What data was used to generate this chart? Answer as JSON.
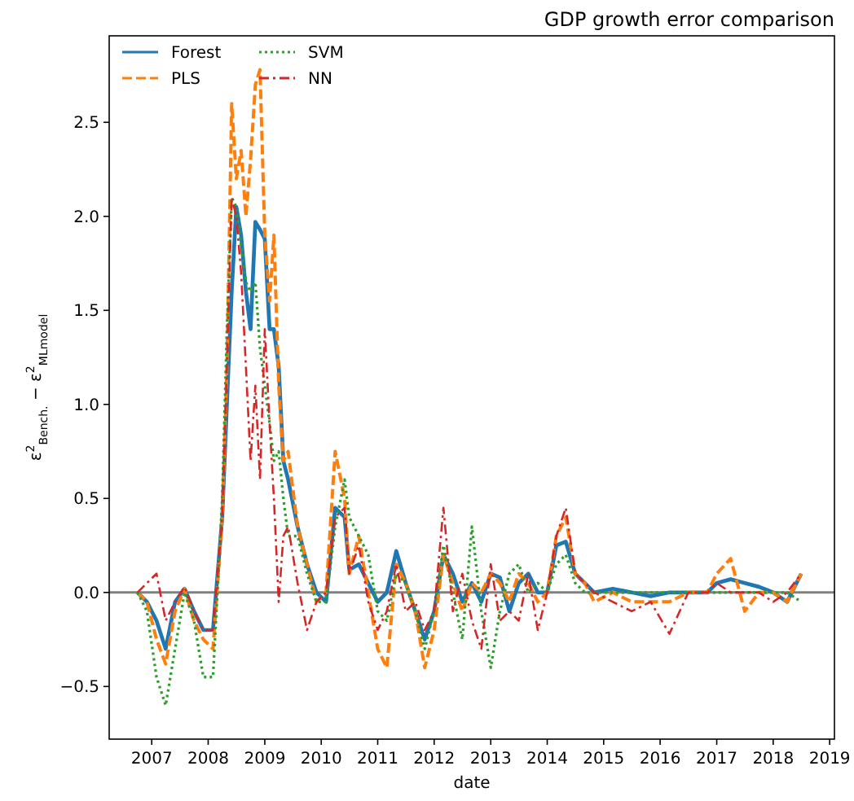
{
  "chart_data": {
    "type": "line",
    "title": "GDP growth error comparison",
    "xlabel": "date",
    "ylabel": "ε$^{2}$$_{Bench.}$ − ε$^{2}$$_{MLmodel}$",
    "x": [
      "2006-10",
      "2006-12",
      "2007-02",
      "2007-04",
      "2007-06",
      "2007-08",
      "2007-10",
      "2007-12",
      "2008-02",
      "2008-04",
      "2008-05",
      "2008-06",
      "2008-07",
      "2008-08",
      "2008-09",
      "2008-10",
      "2008-11",
      "2008-12",
      "2009-01",
      "2009-02",
      "2009-03",
      "2009-04",
      "2009-05",
      "2009-06",
      "2009-08",
      "2009-10",
      "2009-12",
      "2010-02",
      "2010-04",
      "2010-06",
      "2010-07",
      "2010-09",
      "2010-11",
      "2011-01",
      "2011-03",
      "2011-05",
      "2011-07",
      "2011-09",
      "2011-11",
      "2012-01",
      "2012-03",
      "2012-05",
      "2012-07",
      "2012-09",
      "2012-11",
      "2013-01",
      "2013-03",
      "2013-05",
      "2013-07",
      "2013-09",
      "2013-11",
      "2014-01",
      "2014-03",
      "2014-05",
      "2014-07",
      "2014-09",
      "2014-11",
      "2015-03",
      "2015-07",
      "2015-11",
      "2016-03",
      "2016-07",
      "2016-11",
      "2017-01",
      "2017-04",
      "2017-07",
      "2017-10",
      "2018-01",
      "2018-04",
      "2018-07"
    ],
    "series": [
      {
        "name": "Forest",
        "color": "#1f77b4",
        "line_style": "solid",
        "values": [
          0,
          -0.05,
          -0.15,
          -0.3,
          -0.05,
          0.02,
          -0.1,
          -0.2,
          -0.2,
          0.4,
          1.0,
          1.6,
          2.05,
          1.9,
          1.6,
          1.4,
          1.97,
          1.93,
          1.88,
          1.4,
          1.4,
          1.2,
          0.7,
          0.6,
          0.35,
          0.15,
          0.0,
          -0.05,
          0.45,
          0.4,
          0.12,
          0.15,
          0.05,
          -0.05,
          0.0,
          0.22,
          0.05,
          -0.1,
          -0.25,
          -0.1,
          0.2,
          0.1,
          -0.05,
          0.05,
          -0.05,
          0.1,
          0.08,
          -0.1,
          0.05,
          0.1,
          0.0,
          0.0,
          0.25,
          0.27,
          0.1,
          0.05,
          0.0,
          0.02,
          0.0,
          -0.02,
          0.0,
          0.0,
          0.0,
          0.05,
          0.07,
          0.05,
          0.03,
          0.0,
          -0.05,
          0.1
        ]
      },
      {
        "name": "PLS",
        "color": "#ff7f0e",
        "line_style": "dashed",
        "values": [
          0,
          -0.05,
          -0.25,
          -0.38,
          -0.1,
          0.02,
          -0.15,
          -0.25,
          -0.3,
          0.4,
          1.2,
          2.6,
          2.2,
          2.35,
          2.0,
          2.3,
          2.7,
          2.78,
          1.9,
          1.55,
          1.9,
          1.1,
          0.7,
          0.75,
          0.35,
          0.15,
          -0.05,
          0.0,
          0.75,
          0.5,
          0.1,
          0.3,
          0.0,
          -0.3,
          -0.4,
          0.15,
          0.05,
          -0.1,
          -0.4,
          -0.2,
          0.2,
          0.05,
          -0.1,
          0.05,
          0.0,
          0.1,
          0.05,
          -0.05,
          0.1,
          0.05,
          -0.05,
          0.0,
          0.3,
          0.4,
          0.1,
          0.05,
          -0.05,
          0.0,
          -0.05,
          -0.05,
          -0.05,
          0.0,
          0.0,
          0.1,
          0.18,
          -0.1,
          0.0,
          0.0,
          -0.05,
          0.1
        ]
      },
      {
        "name": "SVM",
        "color": "#2ca02c",
        "line_style": "dotted",
        "values": [
          0,
          -0.1,
          -0.45,
          -0.6,
          -0.3,
          0.0,
          -0.15,
          -0.45,
          -0.45,
          0.5,
          1.4,
          2.1,
          2.05,
          1.85,
          1.65,
          1.6,
          1.65,
          1.3,
          1.1,
          0.9,
          0.7,
          0.75,
          0.5,
          0.3,
          0.3,
          0.1,
          -0.05,
          -0.05,
          0.35,
          0.6,
          0.4,
          0.3,
          0.2,
          -0.1,
          -0.15,
          0.1,
          0.05,
          -0.1,
          -0.3,
          -0.1,
          0.25,
          0.0,
          -0.25,
          0.35,
          -0.1,
          -0.4,
          -0.1,
          0.1,
          0.15,
          0.0,
          0.05,
          0.0,
          0.15,
          0.2,
          0.05,
          0.0,
          0.0,
          0.0,
          0.0,
          0.0,
          0.0,
          0.0,
          0.0,
          0.0,
          0.0,
          0.0,
          0.0,
          0.0,
          0.0,
          -0.05
        ]
      },
      {
        "name": "NN",
        "color": "#d62728",
        "line_style": "dashdot",
        "values": [
          0,
          0.05,
          0.1,
          -0.15,
          -0.05,
          0.03,
          -0.1,
          -0.2,
          -0.2,
          0.4,
          1.2,
          2.1,
          2.0,
          1.7,
          1.2,
          0.7,
          1.1,
          0.6,
          1.4,
          0.9,
          0.5,
          -0.05,
          0.3,
          0.35,
          0.05,
          -0.2,
          -0.05,
          0.0,
          0.4,
          0.45,
          0.1,
          0.25,
          -0.05,
          -0.2,
          -0.1,
          0.15,
          -0.1,
          -0.05,
          -0.2,
          -0.1,
          0.45,
          -0.1,
          0.1,
          -0.15,
          -0.3,
          0.15,
          -0.15,
          -0.1,
          -0.15,
          0.1,
          -0.2,
          0.0,
          0.3,
          0.45,
          0.1,
          0.05,
          0.0,
          -0.05,
          -0.1,
          -0.05,
          -0.22,
          0.0,
          0.0,
          0.05,
          0.0,
          0.0,
          0.0,
          -0.05,
          0.0,
          0.1
        ]
      }
    ],
    "xlim": [
      "2006-04",
      "2019-02"
    ],
    "xticks": [
      "2007",
      "2008",
      "2009",
      "2010",
      "2011",
      "2012",
      "2013",
      "2014",
      "2015",
      "2016",
      "2017",
      "2018",
      "2019"
    ],
    "ylim": [
      -0.78,
      2.96
    ],
    "yticks": [
      {
        "value": -0.5,
        "label": "−0.5"
      },
      {
        "value": 0,
        "label": "0.0"
      },
      {
        "value": 0.5,
        "label": "0.5"
      },
      {
        "value": 1,
        "label": "1.0"
      },
      {
        "value": 1.5,
        "label": "1.5"
      },
      {
        "value": 2,
        "label": "2.0"
      },
      {
        "value": 2.5,
        "label": "2.5"
      }
    ],
    "ref_lines": [
      {
        "axis": "y",
        "value": 0,
        "color": "#808080"
      }
    ],
    "grid": false,
    "legend": "top left"
  }
}
